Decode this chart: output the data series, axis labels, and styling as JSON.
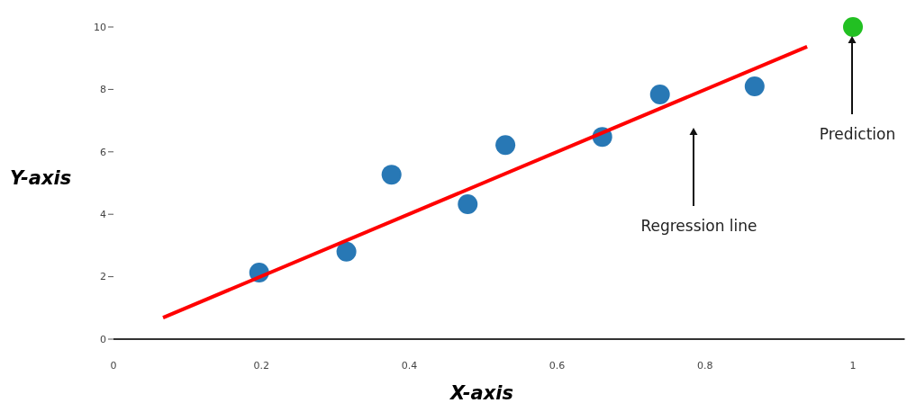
{
  "chart_data": {
    "type": "scatter",
    "xlabel": "X-axis",
    "ylabel": "Y-axis",
    "xlim": [
      0,
      1.07
    ],
    "ylim": [
      0,
      10
    ],
    "xticks": [
      0,
      0.2,
      0.4,
      0.6,
      0.8,
      1
    ],
    "yticks": [
      0,
      2,
      4,
      6,
      8,
      10
    ],
    "grid": false,
    "marker": "circle",
    "series": [
      {
        "type": "scatter",
        "color": "#2878b5",
        "x": [
          0.197,
          0.315,
          0.376,
          0.479,
          0.53,
          0.661,
          0.739,
          0.867
        ],
        "values": [
          2.13,
          2.8,
          5.27,
          4.32,
          6.22,
          6.48,
          7.84,
          8.1
        ]
      },
      {
        "type": "line",
        "marker": "none",
        "color": "#ff0000",
        "x": [
          0.067,
          0.938
        ],
        "values": [
          0.69,
          9.37
        ]
      },
      {
        "type": "scatter",
        "color": "#22c022",
        "x": [
          1
        ],
        "values": [
          10
        ]
      }
    ],
    "annotations": [
      "Regression line",
      "Prediction"
    ]
  }
}
